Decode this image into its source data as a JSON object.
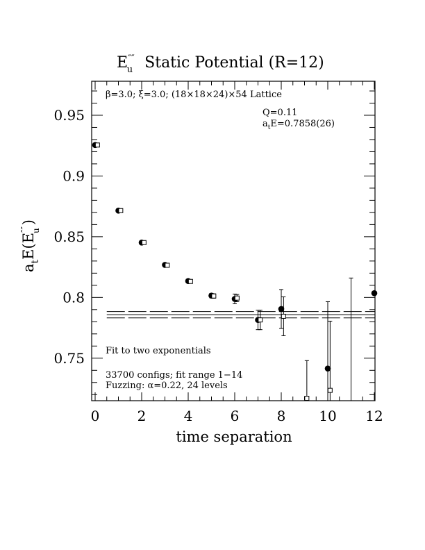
{
  "chart_data": {
    "type": "scatter",
    "title": "E″″u  Static Potential (R=12)",
    "title_parts": {
      "symbol": "E",
      "sup": "″″",
      "sub": "u",
      "rest": "Static Potential (R=12)"
    },
    "xlabel": "time separation",
    "ylabel_parts": {
      "a": "a",
      "t": "t",
      "E": "E(E",
      "sup": "″″",
      "sub": "u",
      "close": ")"
    },
    "xlim": [
      0,
      12.1
    ],
    "ylim": [
      0.715,
      0.978
    ],
    "x_ticks": [
      0,
      2,
      4,
      6,
      8,
      10,
      12
    ],
    "x_tick_labels": [
      "0",
      "2",
      "4",
      "6",
      "8",
      "10",
      "12"
    ],
    "y_ticks": [
      0.75,
      0.8,
      0.85,
      0.9,
      0.95
    ],
    "y_tick_labels": [
      "0.75",
      "0.8",
      "0.85",
      "0.9",
      "0.95"
    ],
    "annotations": {
      "lattice_parts": [
        "β=3.0; ξ=3.0; (18×18×24)×54 Lattice"
      ],
      "q": "Q=0.11",
      "ae": "a",
      "ae_sub": "t",
      "ae_rest": "E=0.7858(26)",
      "fit": "Fit to two exponentials",
      "configs": "33700 configs; fit range 1−14",
      "fuzzing": "Fuzzing: α=0.22, 24 levels"
    },
    "fit_band": {
      "center": 0.7858,
      "low": 0.7832,
      "high": 0.7884,
      "x_start": 0.5,
      "x_end": 12.1
    },
    "series": [
      {
        "marker": "filled-circle",
        "points": [
          {
            "x": 0,
            "y": 0.9255,
            "err": 0.001
          },
          {
            "x": 1,
            "y": 0.8715,
            "err": 0.0012
          },
          {
            "x": 2,
            "y": 0.8452,
            "err": 0.0013
          },
          {
            "x": 3,
            "y": 0.8268,
            "err": 0.0014
          },
          {
            "x": 4,
            "y": 0.8135,
            "err": 0.0015
          },
          {
            "x": 5,
            "y": 0.8015,
            "err": 0.0018
          },
          {
            "x": 6,
            "y": 0.7988,
            "err": 0.004
          },
          {
            "x": 7,
            "y": 0.7815,
            "err": 0.008
          },
          {
            "x": 8,
            "y": 0.7905,
            "err": 0.016
          },
          {
            "x": 10,
            "y": 0.7415,
            "err": 0.055
          },
          {
            "x": 12,
            "y": 0.8035,
            "err": 0.0
          }
        ],
        "bars_only": [
          {
            "x": 11,
            "y": 0.786,
            "err": 0.03,
            "top": 0.816,
            "bottom": 0.715
          }
        ]
      },
      {
        "marker": "open-square",
        "points": [
          {
            "x": 0.1,
            "y": 0.9255,
            "err": 0.001
          },
          {
            "x": 1.1,
            "y": 0.8715,
            "err": 0.0012
          },
          {
            "x": 2.1,
            "y": 0.8452,
            "err": 0.0013
          },
          {
            "x": 3.1,
            "y": 0.8265,
            "err": 0.0014
          },
          {
            "x": 4.1,
            "y": 0.8132,
            "err": 0.0015
          },
          {
            "x": 5.1,
            "y": 0.8012,
            "err": 0.0018
          },
          {
            "x": 6.1,
            "y": 0.7995,
            "err": 0.003
          },
          {
            "x": 7.1,
            "y": 0.7815,
            "err": 0.008
          },
          {
            "x": 8.1,
            "y": 0.7845,
            "err": 0.016
          },
          {
            "x": 9.1,
            "y": 0.717,
            "err": 0.031
          },
          {
            "x": 10.1,
            "y": 0.7235,
            "err": 0.057
          }
        ]
      }
    ]
  }
}
